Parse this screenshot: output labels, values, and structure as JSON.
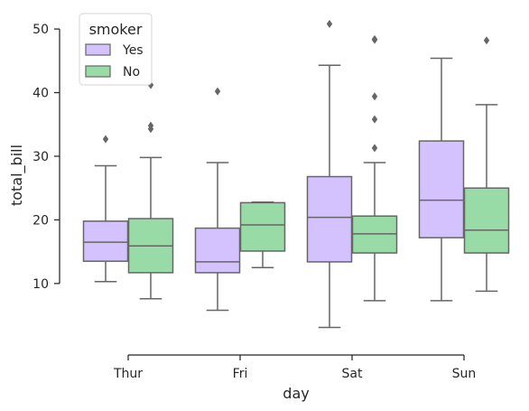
{
  "chart_data": {
    "type": "boxplot",
    "xlabel": "day",
    "ylabel": "total_bill",
    "categories": [
      "Thur",
      "Fri",
      "Sat",
      "Sun"
    ],
    "yticks": [
      10,
      20,
      30,
      40,
      50
    ],
    "ylim": [
      0,
      52
    ],
    "grid": false,
    "legend": {
      "title": "smoker",
      "position": "top-left"
    },
    "colors": {
      "box_line": "#666666",
      "axis": "#262626"
    },
    "series": [
      {
        "name": "Yes",
        "color": "#D4C2FF",
        "boxes": [
          {
            "category": "Thur",
            "whisker_low": 10.3,
            "q1": 13.5,
            "median": 16.5,
            "q3": 19.8,
            "whisker_high": 28.5,
            "outliers": [
              32.7,
              43.1
            ]
          },
          {
            "category": "Fri",
            "whisker_low": 5.8,
            "q1": 11.7,
            "median": 13.4,
            "q3": 18.7,
            "whisker_high": 29.0,
            "outliers": [
              40.2
            ]
          },
          {
            "category": "Sat",
            "whisker_low": 3.1,
            "q1": 13.4,
            "median": 20.4,
            "q3": 26.8,
            "whisker_high": 44.3,
            "outliers": [
              50.8
            ]
          },
          {
            "category": "Sun",
            "whisker_low": 7.3,
            "q1": 17.2,
            "median": 23.1,
            "q3": 32.4,
            "whisker_high": 45.4,
            "outliers": []
          }
        ]
      },
      {
        "name": "No",
        "color": "#98DBA6",
        "boxes": [
          {
            "category": "Thur",
            "whisker_low": 7.6,
            "q1": 11.7,
            "median": 15.9,
            "q3": 20.2,
            "whisker_high": 29.8,
            "outliers": [
              34.3,
              34.8,
              41.2
            ]
          },
          {
            "category": "Fri",
            "whisker_low": 12.5,
            "q1": 15.1,
            "median": 19.2,
            "q3": 22.7,
            "whisker_high": 22.8,
            "outliers": []
          },
          {
            "category": "Sat",
            "whisker_low": 7.3,
            "q1": 14.8,
            "median": 17.8,
            "q3": 20.6,
            "whisker_high": 29.0,
            "outliers": [
              31.3,
              35.8,
              39.4,
              48.3,
              48.4
            ]
          },
          {
            "category": "Sun",
            "whisker_low": 8.8,
            "q1": 14.8,
            "median": 18.4,
            "q3": 25.0,
            "whisker_high": 38.1,
            "outliers": [
              48.2
            ]
          }
        ]
      }
    ]
  }
}
